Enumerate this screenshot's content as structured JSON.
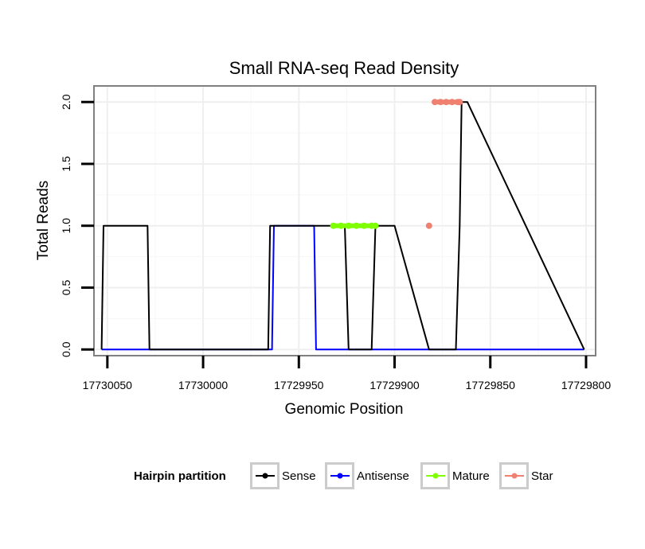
{
  "chart_data": {
    "type": "line",
    "title": "Small RNA-seq Read Density",
    "xlabel": "Genomic Position",
    "ylabel": "Total Reads",
    "x_reversed": true,
    "xlim": [
      17730057,
      17729795
    ],
    "ylim": [
      -0.05,
      2.13
    ],
    "x_ticks": [
      {
        "value": 17730050,
        "label": "17730050"
      },
      {
        "value": 17730000,
        "label": "17730000"
      },
      {
        "value": 17729950,
        "label": "17729950"
      },
      {
        "value": 17729900,
        "label": "17729900"
      },
      {
        "value": 17729850,
        "label": "17729850"
      },
      {
        "value": 17729800,
        "label": "17729800"
      }
    ],
    "y_ticks": [
      {
        "value": 0,
        "label": "0.0"
      },
      {
        "value": 0.5,
        "label": "0.5"
      },
      {
        "value": 1,
        "label": "1.0"
      },
      {
        "value": 1.5,
        "label": "1.5"
      },
      {
        "value": 2,
        "label": "2.0"
      }
    ],
    "grid": true,
    "legend_title": "Hairpin partition",
    "legend_position": "bottom",
    "series": [
      {
        "name": "Sense",
        "color": "#000000",
        "style": "line",
        "x": [
          17730053,
          17730052,
          17730029,
          17730028,
          17729966,
          17729965,
          17729957,
          17729956,
          17729949,
          17729948,
          17729947,
          17729946,
          17729945,
          17729943,
          17729942,
          17729941,
          17729935,
          17729934,
          17729932,
          17729926,
          17729924,
          17729922,
          17729918,
          17729917,
          17729914,
          17729913,
          17729912,
          17729910,
          17729909,
          17729907,
          17729902,
          17729900,
          17729882,
          17729880,
          17729878,
          17729870,
          17729868,
          17729866,
          17729865,
          17729863,
          17729862,
          17729801
        ],
        "y": [
          0,
          1,
          1,
          0,
          0,
          1,
          1,
          1,
          1,
          1,
          1,
          1,
          1,
          1,
          1,
          1,
          1,
          1,
          1,
          1,
          0,
          0,
          0,
          0,
          0,
          0,
          0,
          1,
          1,
          1,
          1,
          1,
          0,
          0,
          0,
          0,
          0,
          1,
          2,
          2,
          2,
          0
        ]
      },
      {
        "name": "Antisense",
        "color": "#0000ff",
        "style": "line",
        "x": [
          17730053,
          17730028,
          17729964,
          17729963,
          17729942,
          17729941,
          17729940,
          17729939,
          17729906,
          17729905,
          17729863,
          17729862,
          17729801
        ],
        "y": [
          0,
          0,
          0,
          1,
          1,
          0,
          0,
          0,
          0,
          0,
          0,
          0,
          0
        ]
      },
      {
        "name": "Mature",
        "color": "#7fff00",
        "style": "points",
        "x": [
          17729932,
          17729928,
          17729924,
          17729920,
          17729916,
          17729912,
          17729910
        ],
        "y": [
          1,
          1,
          1,
          1,
          1,
          1,
          1
        ]
      },
      {
        "name": "Star",
        "color": "#f08070",
        "style": "points",
        "x": [
          17729882,
          17729879,
          17729876,
          17729873,
          17729870,
          17729867,
          17729866
        ],
        "y": [
          1,
          2,
          2,
          2,
          2,
          2,
          2
        ]
      }
    ]
  }
}
